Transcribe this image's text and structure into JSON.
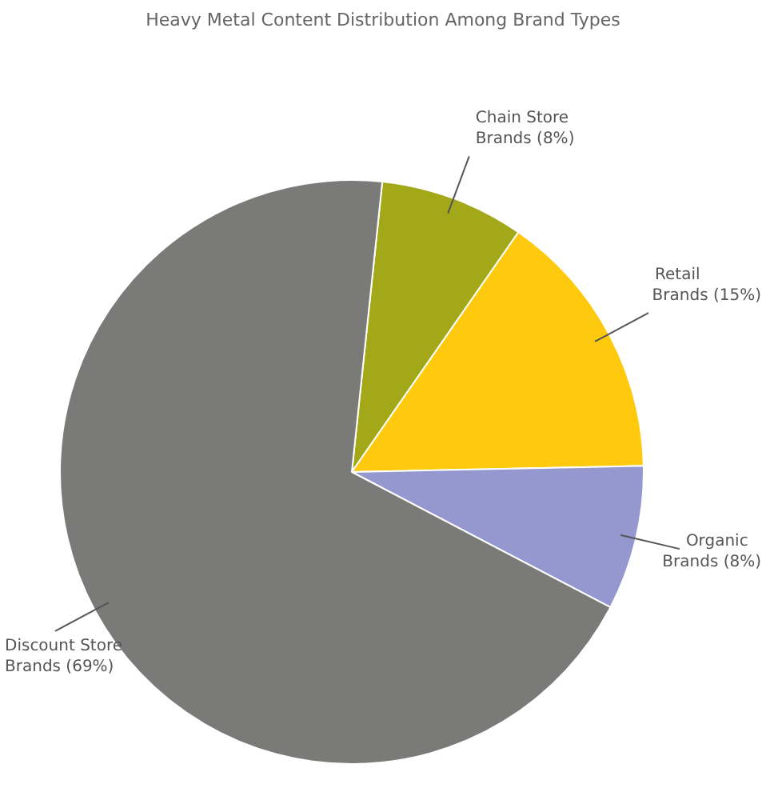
{
  "chart_data": {
    "type": "pie",
    "title": "Heavy Metal Content Distribution Among Brand Types",
    "categories": [
      "Chain Store Brands",
      "Retail Brands",
      "Organic Brands",
      "Discount Store Brands"
    ],
    "values": [
      8,
      15,
      8,
      69
    ],
    "value_labels": [
      "(8%)",
      "(15%)",
      "(8%)",
      "(69%)"
    ],
    "colors": [
      "#a3a818",
      "#ffc90e",
      "#9598cf",
      "#7a7a78"
    ],
    "legend": false
  }
}
